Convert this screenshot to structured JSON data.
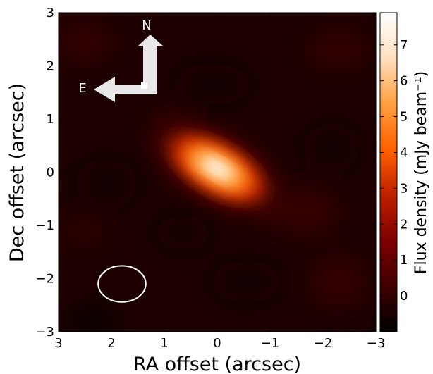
{
  "chart_data": {
    "type": "heatmap",
    "xlabel": "RA offset (arcsec)",
    "ylabel": "Dec offset (arcsec)",
    "xlim": [
      3,
      -3
    ],
    "ylim": [
      -3,
      3
    ],
    "x_ticks": [
      3,
      2,
      1,
      0,
      -1,
      -2,
      -3
    ],
    "y_ticks": [
      -3,
      -2,
      -1,
      0,
      1,
      2,
      3
    ],
    "x_tick_labels": [
      "3",
      "2",
      "1",
      "0",
      "−1",
      "−2",
      "−3"
    ],
    "y_tick_labels": [
      "−3",
      "−2",
      "−1",
      "0",
      "1",
      "2",
      "3"
    ],
    "colorbar": {
      "label": "Flux density (mJy beam⁻¹)",
      "range": [
        -1.0,
        7.9
      ],
      "ticks": [
        0,
        1,
        2,
        3,
        4,
        5,
        6,
        7
      ],
      "tick_labels": [
        "0",
        "1",
        "2",
        "3",
        "4",
        "5",
        "6",
        "7"
      ],
      "colormap": "gist_heat",
      "colors": [
        "#000000",
        "#3f0000",
        "#7f0000",
        "#be2000",
        "#fe6000",
        "#ffa040",
        "#ffe0c0",
        "#ffffff"
      ]
    },
    "source": {
      "x_center": 0.0,
      "y_center": 0.07,
      "peak": 7.9,
      "major_axis_fwhm": 1.3,
      "minor_axis_fwhm": 0.6,
      "position_angle_deg": 60
    },
    "beam": {
      "x_center": 1.8,
      "y_center": -2.1,
      "major_axis": 0.9,
      "minor_axis": 0.68,
      "color": "#ffffff"
    },
    "compass": {
      "north_label": "N",
      "east_label": "E",
      "color": "#e8e8e8"
    }
  }
}
